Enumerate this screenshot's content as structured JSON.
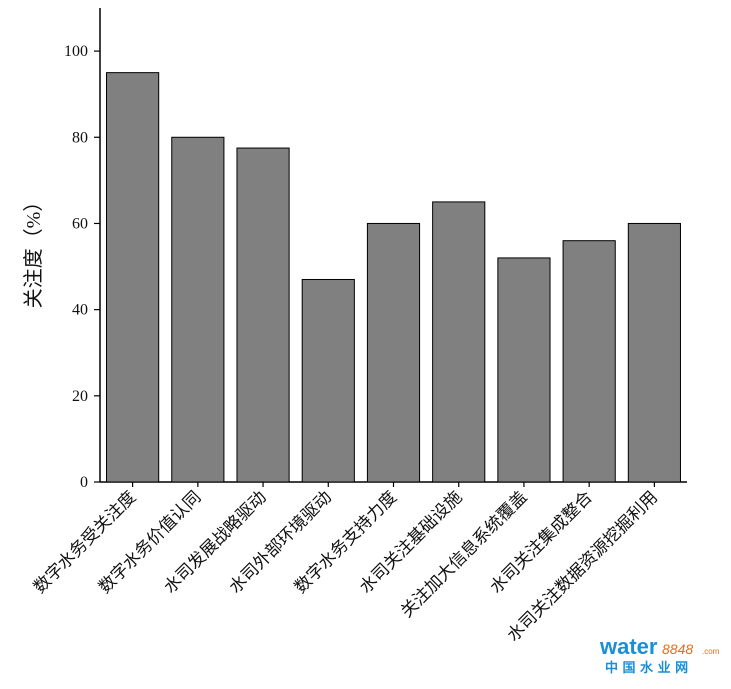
{
  "chart_data": {
    "type": "bar",
    "y_label": "关注度（%）",
    "categories": [
      "数字水务受关注度",
      "数字水务价值认同",
      "水司发展战略驱动",
      "水司外部环境驱动",
      "数字水务支持力度",
      "水司关注基础设施",
      "关注加大信息系统覆盖",
      "水司关注集成整合",
      "水司关注数据资源挖掘利用"
    ],
    "values": [
      95,
      80,
      77.5,
      47,
      60,
      65,
      52,
      56,
      60
    ],
    "color": "#808080",
    "ylim": [
      0,
      110
    ],
    "yticks": [
      0,
      20,
      40,
      60,
      80,
      100
    ]
  },
  "watermark": {
    "brand": "water",
    "number": "8848",
    "domain": ".com",
    "name": "中 国 水 业 网"
  }
}
